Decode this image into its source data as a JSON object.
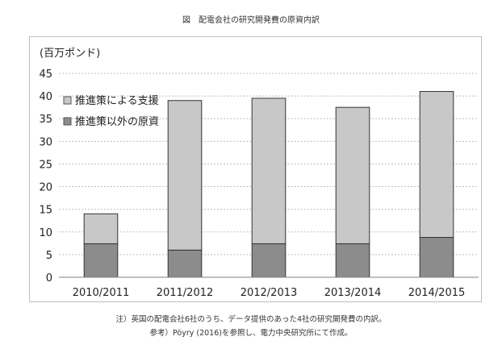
{
  "figure": {
    "title": "図　配電会社の研究開発費の原資内訳"
  },
  "notes": {
    "line1": "注）英国の配電会社6社のうち、データ提供のあった4社の研究開発費の内訳。",
    "line2": "参考）Pöyry (2016)を参照し、電力中央研究所にて作成。"
  },
  "chart_data": {
    "type": "bar",
    "stacked": true,
    "title": "",
    "xlabel": "",
    "ylabel": "(百万ポンド)",
    "ylim": [
      0,
      45
    ],
    "yticks": [
      0,
      5,
      10,
      15,
      20,
      25,
      30,
      35,
      40,
      45
    ],
    "grid": true,
    "legend_position": "top-left",
    "categories": [
      "2010/2011",
      "2011/2012",
      "2012/2013",
      "2013/2014",
      "2014/2015"
    ],
    "series": [
      {
        "name": "推進策以外の原資",
        "color": "#8c8c8c",
        "values": [
          7.4,
          6.0,
          7.4,
          7.4,
          8.8
        ]
      },
      {
        "name": "推進策による支援",
        "color": "#c8c8c8",
        "values": [
          6.6,
          33.0,
          32.1,
          30.1,
          32.2
        ]
      }
    ],
    "legend_order": [
      "推進策による支援",
      "推進策以外の原資"
    ]
  }
}
